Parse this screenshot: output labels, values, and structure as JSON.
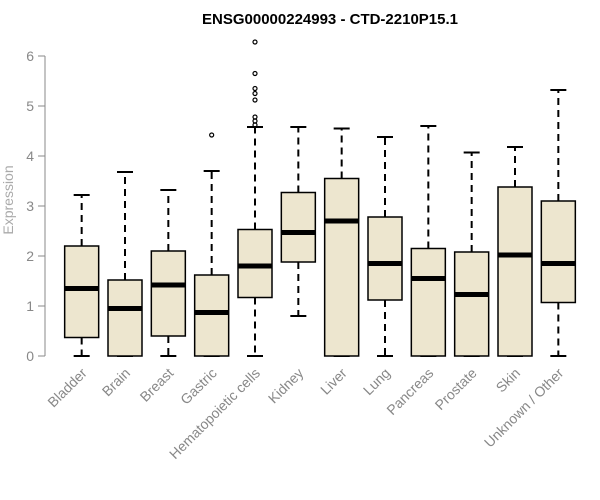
{
  "chart_data": {
    "type": "boxplot",
    "title": "ENSG00000224993 - CTD-2210P15.1",
    "xlabel": "",
    "ylabel": "Expression",
    "ylim": [
      0,
      6
    ],
    "yticks": [
      "0",
      "1",
      "2",
      "3",
      "4",
      "5",
      "6"
    ],
    "box_fill": "#ede6cf",
    "box_stroke": "#000000",
    "axis_color": "#888888",
    "categories": [
      "Bladder",
      "Brain",
      "Breast",
      "Gastric",
      "Hematopoietic cells",
      "Kidney",
      "Liver",
      "Lung",
      "Pancreas",
      "Prostate",
      "Skin",
      "Unknown / Other"
    ],
    "boxes": [
      {
        "min": 0.0,
        "q1": 0.37,
        "median": 1.35,
        "q3": 2.2,
        "max": 3.22,
        "outliers": []
      },
      {
        "min": 0.0,
        "q1": 0.0,
        "median": 0.95,
        "q3": 1.52,
        "max": 3.68,
        "outliers": []
      },
      {
        "min": 0.0,
        "q1": 0.4,
        "median": 1.42,
        "q3": 2.1,
        "max": 3.32,
        "outliers": []
      },
      {
        "min": 0.0,
        "q1": 0.0,
        "median": 0.87,
        "q3": 1.62,
        "max": 3.7,
        "outliers": [
          4.42
        ]
      },
      {
        "min": 0.0,
        "q1": 1.17,
        "median": 1.8,
        "q3": 2.53,
        "max": 4.58,
        "outliers": [
          4.62,
          4.7,
          4.78,
          5.12,
          5.25,
          5.35,
          5.65,
          6.28
        ]
      },
      {
        "min": 0.8,
        "q1": 1.88,
        "median": 2.47,
        "q3": 3.27,
        "max": 4.58,
        "outliers": []
      },
      {
        "min": 0.0,
        "q1": 0.0,
        "median": 2.7,
        "q3": 3.55,
        "max": 4.55,
        "outliers": []
      },
      {
        "min": 0.0,
        "q1": 1.12,
        "median": 1.85,
        "q3": 2.78,
        "max": 4.38,
        "outliers": []
      },
      {
        "min": 0.0,
        "q1": 0.0,
        "median": 1.55,
        "q3": 2.15,
        "max": 4.6,
        "outliers": []
      },
      {
        "min": 0.0,
        "q1": 0.0,
        "median": 1.23,
        "q3": 2.08,
        "max": 4.07,
        "outliers": []
      },
      {
        "min": 0.0,
        "q1": 0.0,
        "median": 2.02,
        "q3": 3.38,
        "max": 4.18,
        "outliers": []
      },
      {
        "min": 0.0,
        "q1": 1.07,
        "median": 1.85,
        "q3": 3.1,
        "max": 5.32,
        "outliers": []
      }
    ]
  }
}
